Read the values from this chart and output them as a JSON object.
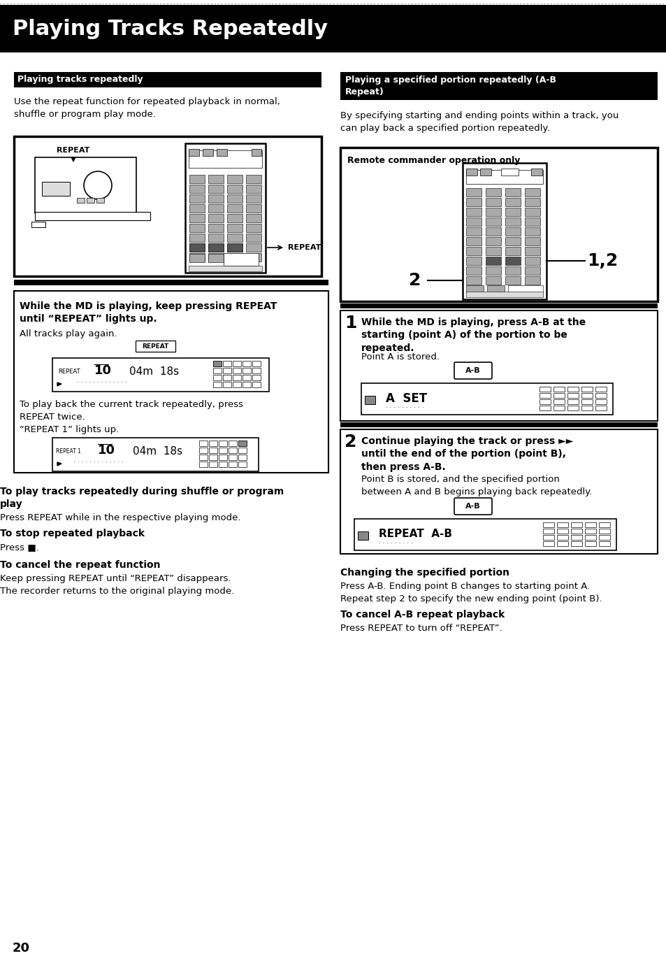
{
  "title": "Playing Tracks Repeatedly",
  "title_bg": "#000000",
  "title_color": "#ffffff",
  "title_fontsize": 22,
  "page_bg": "#ffffff",
  "left_section_header": "Playing tracks repeatedly",
  "right_section_header": "Playing a specified portion repeatedly (A-B\nRepeat)",
  "section_header_bg": "#000000",
  "section_header_color": "#ffffff",
  "left_intro": "Use the repeat function for repeated playback in normal,\nshuffle or program play mode.",
  "step1_bold": "While the MD is playing, keep pressing REPEAT\nuntil “REPEAT” lights up.",
  "step1_normal": "All tracks play again.",
  "repeat_twice_text": "To play back the current track repeatedly, press\nREPEAT twice.\n“REPEAT 1” lights up.",
  "shuffle_bold": "To play tracks repeatedly during shuffle or program\nplay",
  "shuffle_normal": "Press REPEAT while in the respective playing mode.",
  "stop_bold": "To stop repeated playback",
  "stop_normal": "Press ■.",
  "cancel_bold": "To cancel the repeat function",
  "cancel_normal": "Keep pressing REPEAT until “REPEAT” disappears.\nThe recorder returns to the original playing mode.",
  "right_intro": "By specifying starting and ending points within a track, you\ncan play back a specified portion repeatedly.",
  "remote_label": "Remote commander operation only",
  "step_r1_bold": "While the MD is playing, press A-B at the\nstarting (point A) of the portion to be\nrepeated.",
  "step_r1_normal": "Point A is stored.",
  "step_r1_display": "A  SET",
  "step_r2_bold": "Continue playing the track or press ►►\nuntil the end of the portion (point B),\nthen press A-B.",
  "step_r2_normal": "Point B is stored, and the specified portion\nbetween A and B begins playing back repeatedly.",
  "step_r2_display": "REPEAT  A-B",
  "changing_bold": "Changing the specified portion",
  "changing_normal": "Press A-B. Ending point B changes to starting point A.\nRepeat step 2 to specify the new ending point (point B).",
  "cancel_ab_bold": "To cancel A-B repeat playback",
  "cancel_ab_normal": "Press REPEAT to turn off “REPEAT”.",
  "page_number": "20"
}
